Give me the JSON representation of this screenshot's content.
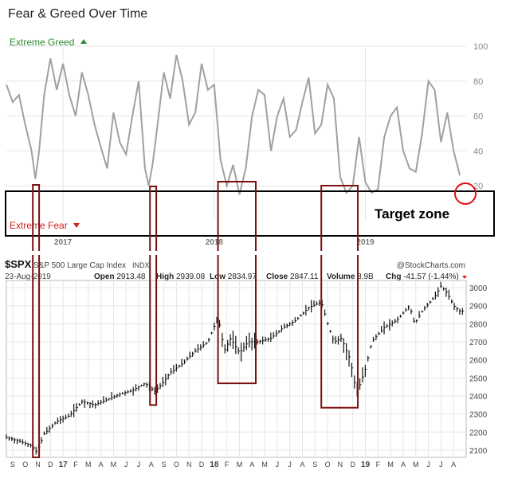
{
  "title": "Fear & Greed Over Time",
  "colors": {
    "fg_line": "#a0a0a0",
    "greed_label": "#2e8b2e",
    "fear_label": "#cc2222",
    "zone_box": "#7a1010",
    "target_box": "#000000",
    "circle": "#dd1111",
    "price_bar": "#111111",
    "grid": "#e6e6e6",
    "axis_text": "#888888"
  },
  "icons": {
    "greed": "triangle-up-icon",
    "fear": "triangle-down-icon",
    "stockcharts": "stockcharts-logo-icon"
  },
  "chart_data": [
    {
      "type": "line",
      "name": "fear_greed",
      "title": "Fear & Greed Over Time",
      "labels": {
        "extreme_greed": "Extreme Greed",
        "extreme_fear": "Extreme Fear",
        "target_zone": "Target zone"
      },
      "y_ticks": [
        100,
        80,
        60,
        40,
        20
      ],
      "ylim": [
        0,
        100
      ],
      "xlim": [
        0,
        36.5
      ],
      "year_labels": [
        {
          "x": 4.5,
          "label": "2017"
        },
        {
          "x": 16.5,
          "label": "2018"
        },
        {
          "x": 28.5,
          "label": "2019"
        }
      ],
      "series": [
        {
          "name": "Fear & Greed",
          "x": [
            0,
            0.5,
            1,
            1.5,
            2,
            2.3,
            2.6,
            3,
            3.5,
            4,
            4.5,
            5,
            5.5,
            6,
            6.5,
            7,
            7.5,
            8,
            8.5,
            9,
            9.5,
            10,
            10.5,
            11,
            11.3,
            11.6,
            12,
            12.5,
            13,
            13.5,
            14,
            14.5,
            15,
            15.5,
            16,
            16.5,
            17,
            17.5,
            18,
            18.5,
            19,
            19.5,
            20,
            20.5,
            21,
            21.5,
            22,
            22.5,
            23,
            23.5,
            24,
            24.5,
            25,
            25.5,
            26,
            26.5,
            27,
            27.5,
            28,
            28.5,
            29,
            29.5,
            30,
            30.5,
            31,
            31.5,
            32,
            32.5,
            33,
            33.5,
            34,
            34.5,
            35,
            35.5,
            36
          ],
          "values": [
            78,
            68,
            72,
            55,
            40,
            24,
            40,
            72,
            93,
            75,
            90,
            72,
            60,
            85,
            72,
            55,
            42,
            30,
            62,
            45,
            38,
            60,
            80,
            30,
            20,
            32,
            55,
            85,
            70,
            95,
            80,
            55,
            62,
            90,
            75,
            78,
            35,
            20,
            32,
            15,
            30,
            60,
            75,
            72,
            40,
            60,
            70,
            48,
            52,
            68,
            82,
            50,
            55,
            78,
            70,
            25,
            16,
            20,
            48,
            22,
            16,
            18,
            48,
            60,
            65,
            40,
            30,
            28,
            50,
            80,
            75,
            45,
            62,
            40,
            26
          ]
        }
      ]
    },
    {
      "type": "bar",
      "name": "spx",
      "header": {
        "symbol": "$SPX",
        "name": "S&P 500 Large Cap Index",
        "exchange": "INDX",
        "source": "@StockCharts.com",
        "date": "23-Aug-2019",
        "open_label": "Open",
        "open": "2913.48",
        "high_label": "High",
        "high": "2939.08",
        "low_label": "Low",
        "low": "2834.97",
        "close_label": "Close",
        "close": "2847.11",
        "volume_label": "Volume",
        "volume": "8.9B",
        "chg_label": "Chg",
        "chg": "-41.57 (-1.44%)"
      },
      "y_ticks": [
        3000,
        2900,
        2800,
        2700,
        2600,
        2500,
        2400,
        2300,
        2200,
        2100
      ],
      "ylim": [
        2060,
        3040
      ],
      "xlim": [
        0,
        36.5
      ],
      "month_labels": [
        {
          "x": 0.5,
          "label": "S"
        },
        {
          "x": 1.5,
          "label": "O"
        },
        {
          "x": 2.5,
          "label": "N"
        },
        {
          "x": 3.5,
          "label": "D"
        },
        {
          "x": 4.5,
          "label": "17"
        },
        {
          "x": 5.5,
          "label": "F"
        },
        {
          "x": 6.5,
          "label": "M"
        },
        {
          "x": 7.5,
          "label": "A"
        },
        {
          "x": 8.5,
          "label": "M"
        },
        {
          "x": 9.5,
          "label": "J"
        },
        {
          "x": 10.5,
          "label": "J"
        },
        {
          "x": 11.5,
          "label": "A"
        },
        {
          "x": 12.5,
          "label": "S"
        },
        {
          "x": 13.5,
          "label": "O"
        },
        {
          "x": 14.5,
          "label": "N"
        },
        {
          "x": 15.5,
          "label": "D"
        },
        {
          "x": 16.5,
          "label": "18"
        },
        {
          "x": 17.5,
          "label": "F"
        },
        {
          "x": 18.5,
          "label": "M"
        },
        {
          "x": 19.5,
          "label": "A"
        },
        {
          "x": 20.5,
          "label": "M"
        },
        {
          "x": 21.5,
          "label": "J"
        },
        {
          "x": 22.5,
          "label": "J"
        },
        {
          "x": 23.5,
          "label": "A"
        },
        {
          "x": 24.5,
          "label": "S"
        },
        {
          "x": 25.5,
          "label": "O"
        },
        {
          "x": 26.5,
          "label": "N"
        },
        {
          "x": 27.5,
          "label": "D"
        },
        {
          "x": 28.5,
          "label": "19"
        },
        {
          "x": 29.5,
          "label": "F"
        },
        {
          "x": 30.5,
          "label": "M"
        },
        {
          "x": 31.5,
          "label": "A"
        },
        {
          "x": 32.5,
          "label": "M"
        },
        {
          "x": 33.5,
          "label": "J"
        },
        {
          "x": 34.5,
          "label": "J"
        },
        {
          "x": 35.5,
          "label": "A"
        }
      ],
      "anchors_x": [
        0,
        1,
        2,
        2.4,
        3,
        4,
        5,
        6,
        7,
        8,
        9,
        10,
        11,
        11.8,
        12.5,
        13,
        14,
        15,
        16,
        16.8,
        17.3,
        17.8,
        18.5,
        19.2,
        20,
        21,
        22,
        23,
        24,
        25,
        25.5,
        26,
        26.6,
        27.3,
        27.8,
        28.5,
        29,
        30,
        31,
        32,
        32.4,
        33,
        34,
        34.5,
        35,
        35.5,
        36
      ],
      "anchors_close": [
        2170,
        2150,
        2125,
        2090,
        2190,
        2260,
        2290,
        2370,
        2350,
        2380,
        2410,
        2430,
        2470,
        2425,
        2480,
        2530,
        2580,
        2650,
        2700,
        2840,
        2650,
        2720,
        2640,
        2700,
        2700,
        2720,
        2780,
        2820,
        2890,
        2920,
        2800,
        2700,
        2720,
        2600,
        2410,
        2550,
        2700,
        2780,
        2820,
        2900,
        2800,
        2870,
        2950,
        3010,
        2970,
        2900,
        2870
      ],
      "highlight_boxes": [
        {
          "name": "box-nov-2016",
          "x0": 2.1,
          "x1": 2.6,
          "y0": 2060,
          "y1": 3040
        },
        {
          "name": "box-aug-2017",
          "x0": 11.4,
          "x1": 11.9,
          "y0": 2350,
          "y1": 3040
        },
        {
          "name": "box-feb-apr-2018",
          "x0": 16.8,
          "x1": 19.8,
          "y0": 2470,
          "y1": 3040
        },
        {
          "name": "box-oct-dec-2018",
          "x0": 25.0,
          "x1": 27.9,
          "y0": 2335,
          "y1": 3040
        }
      ]
    }
  ]
}
